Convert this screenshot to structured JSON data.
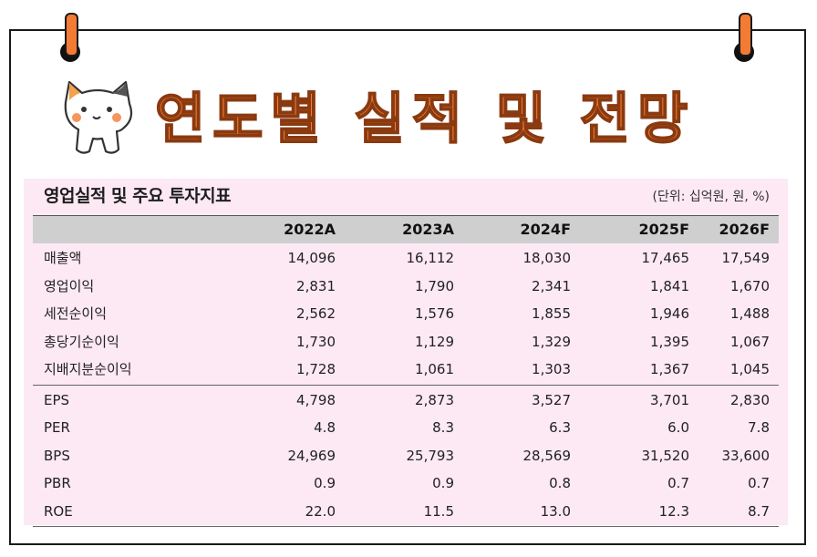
{
  "banner": {
    "title": "연도별 실적 및 전망"
  },
  "table": {
    "title": "영업실적 및 주요 투자지표",
    "unit": "(단위: 십억원, 원, %)",
    "columns": [
      "2022A",
      "2023A",
      "2024F",
      "2025F",
      "2026F"
    ],
    "rows": [
      {
        "label": "매출액",
        "values": [
          "14,096",
          "16,112",
          "18,030",
          "17,465",
          "17,549"
        ]
      },
      {
        "label": "영업이익",
        "values": [
          "2,831",
          "1,790",
          "2,341",
          "1,841",
          "1,670"
        ]
      },
      {
        "label": "세전순이익",
        "values": [
          "2,562",
          "1,576",
          "1,855",
          "1,946",
          "1,488"
        ]
      },
      {
        "label": "총당기순이익",
        "values": [
          "1,730",
          "1,129",
          "1,329",
          "1,395",
          "1,067"
        ]
      },
      {
        "label": "지배지분순이익",
        "values": [
          "1,728",
          "1,061",
          "1,303",
          "1,367",
          "1,045"
        ]
      },
      {
        "label": "EPS",
        "values": [
          "4,798",
          "2,873",
          "3,527",
          "3,701",
          "2,830"
        ]
      },
      {
        "label": "PER",
        "values": [
          "4.8",
          "8.3",
          "6.3",
          "6.0",
          "7.8"
        ]
      },
      {
        "label": "BPS",
        "values": [
          "24,969",
          "25,793",
          "28,569",
          "31,520",
          "33,600"
        ]
      },
      {
        "label": "PBR",
        "values": [
          "0.9",
          "0.9",
          "0.8",
          "0.7",
          "0.7"
        ]
      },
      {
        "label": "ROE",
        "values": [
          "22.0",
          "11.5",
          "13.0",
          "12.3",
          "8.7"
        ]
      }
    ]
  },
  "colors": {
    "accent": "#f47b34",
    "panel": "#fde9f3",
    "header": "#cfcfcf"
  },
  "icons": {
    "mascot": "cat-mascot-icon",
    "ring": "binder-ring-icon"
  }
}
